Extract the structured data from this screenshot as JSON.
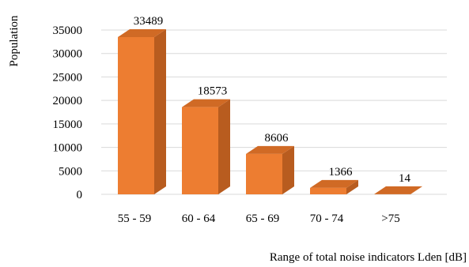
{
  "chart_data": {
    "type": "bar",
    "style": "3d-column",
    "title": "",
    "xlabel": "Range of total noise indicators Lden [dB]",
    "ylabel": "Population",
    "categories": [
      "55 - 59",
      "60 - 64",
      "65 - 69",
      "70 - 74",
      ">75"
    ],
    "values": [
      33489,
      18573,
      8606,
      1366,
      14
    ],
    "data_labels": [
      "33489",
      "18573",
      "8606",
      "1366",
      "14"
    ],
    "ylim": [
      0,
      35000
    ],
    "yticks": [
      0,
      5000,
      10000,
      15000,
      20000,
      25000,
      30000,
      35000
    ],
    "ytick_labels": [
      "0",
      "5000",
      "10000",
      "15000",
      "20000",
      "25000",
      "30000",
      "35000"
    ],
    "grid": true,
    "legend": "none",
    "colors": {
      "front": "#ED7D31",
      "side": "#B85C1F",
      "top": "#D06A25",
      "grid": "#D9D9D9"
    }
  }
}
